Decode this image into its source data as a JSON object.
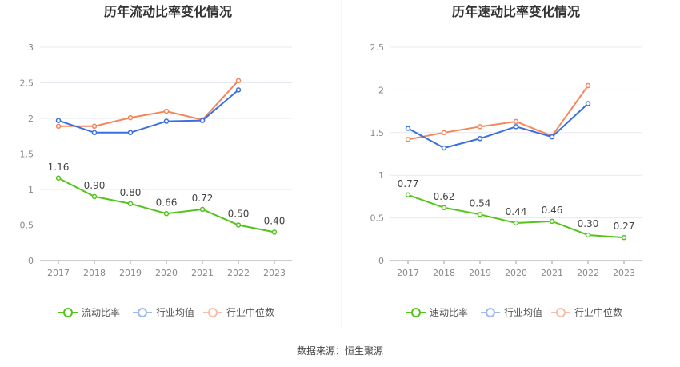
{
  "chart_data": [
    {
      "type": "line",
      "title": "历年流动比率变化情况",
      "categories": [
        "2017",
        "2018",
        "2019",
        "2020",
        "2021",
        "2022",
        "2023"
      ],
      "ylim": [
        0,
        3
      ],
      "yticks": [
        "0",
        "0.5",
        "1",
        "1.5",
        "2",
        "2.5",
        "3"
      ],
      "grid": true,
      "legend": "bottom",
      "series": [
        {
          "name": "流动比率",
          "color": "#52c41a",
          "values": [
            1.16,
            0.9,
            0.8,
            0.66,
            0.72,
            0.5,
            0.4
          ],
          "labels": [
            "1.16",
            "0.90",
            "0.80",
            "0.66",
            "0.72",
            "0.50",
            "0.40"
          ]
        },
        {
          "name": "行业均值",
          "color": "#3a6fe0",
          "values": [
            1.97,
            1.8,
            1.8,
            1.96,
            1.97,
            2.4,
            null
          ]
        },
        {
          "name": "行业中位数",
          "color": "#f5855a",
          "values": [
            1.89,
            1.89,
            2.01,
            2.1,
            1.98,
            2.53,
            null
          ]
        }
      ]
    },
    {
      "type": "line",
      "title": "历年速动比率变化情况",
      "categories": [
        "2017",
        "2018",
        "2019",
        "2020",
        "2021",
        "2022",
        "2023"
      ],
      "ylim": [
        0,
        2.5
      ],
      "yticks": [
        "0",
        "0.5",
        "1",
        "1.5",
        "2",
        "2.5"
      ],
      "grid": true,
      "legend": "bottom",
      "series": [
        {
          "name": "速动比率",
          "color": "#52c41a",
          "values": [
            0.77,
            0.62,
            0.54,
            0.44,
            0.46,
            0.3,
            0.27
          ],
          "labels": [
            "0.77",
            "0.62",
            "0.54",
            "0.44",
            "0.46",
            "0.30",
            "0.27"
          ]
        },
        {
          "name": "行业均值",
          "color": "#3a6fe0",
          "values": [
            1.55,
            1.32,
            1.43,
            1.57,
            1.45,
            1.84,
            null
          ]
        },
        {
          "name": "行业中位数",
          "color": "#f5855a",
          "values": [
            1.42,
            1.5,
            1.57,
            1.63,
            1.46,
            2.05,
            null
          ]
        }
      ]
    }
  ],
  "source": "数据来源：恒生聚源"
}
